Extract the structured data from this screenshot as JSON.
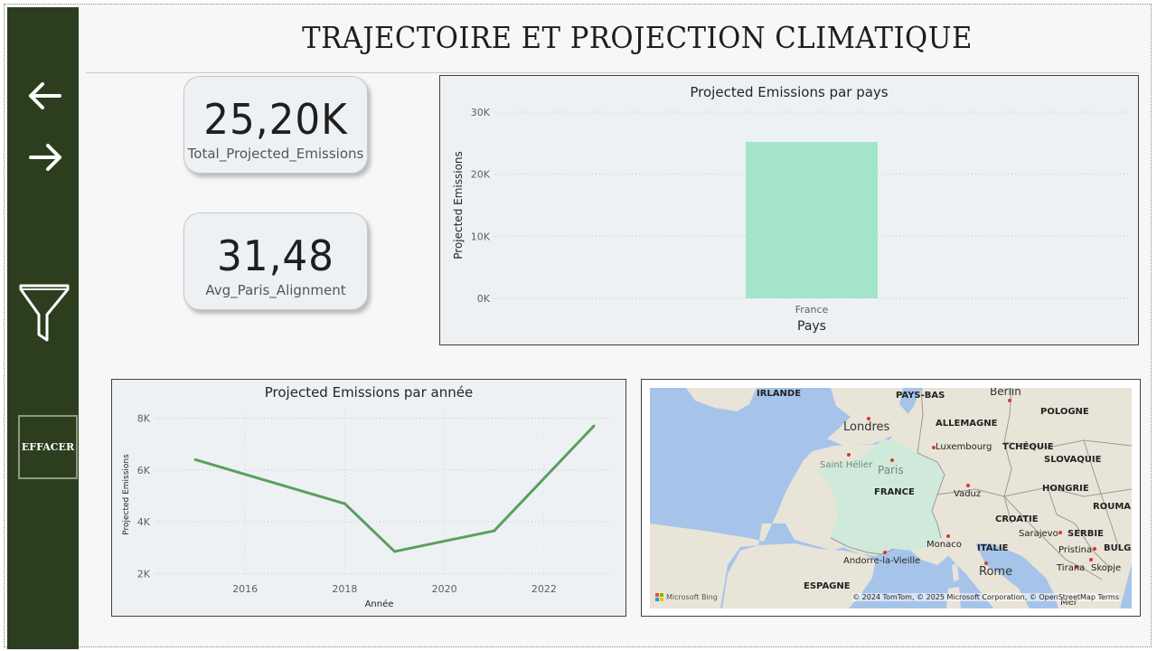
{
  "page": {
    "title": "TRAJECTOIRE ET PROJECTION CLIMATIQUE"
  },
  "sidebar": {
    "back_icon": "arrow-left-icon",
    "forward_icon": "arrow-right-icon",
    "filter_icon": "funnel-icon",
    "clear_label": "EFFACER",
    "background_color": "#2c3e1e"
  },
  "kpis": [
    {
      "value": "25,20K",
      "label": "Total_Projected_Emissions"
    },
    {
      "value": "31,48",
      "label": "Avg_Paris_Alignment"
    }
  ],
  "chart_data": [
    {
      "type": "bar",
      "title": "Projected Emissions par pays",
      "xlabel": "Pays",
      "ylabel": "Projected Emissions",
      "categories": [
        "France"
      ],
      "values": [
        25200
      ],
      "ylim": [
        0,
        30000
      ],
      "yticks": [
        "0K",
        "10K",
        "20K",
        "30K"
      ],
      "color": "#a3e4cb",
      "grid": true
    },
    {
      "type": "line",
      "title": "Projected Emissions par année",
      "xlabel": "Année",
      "ylabel": "Projected Emissions",
      "x": [
        2015,
        2018,
        2019,
        2021,
        2023
      ],
      "values": [
        6400,
        4700,
        2850,
        3650,
        7700
      ],
      "xlim": [
        2014.2,
        2023.4
      ],
      "ylim": [
        1800,
        8300
      ],
      "xticks": [
        "2016",
        "2018",
        "2020",
        "2022"
      ],
      "yticks": [
        "2K",
        "4K",
        "6K",
        "8K"
      ],
      "color": "#5aa05e",
      "grid": true
    }
  ],
  "map": {
    "labels": {
      "irlande": "IRLANDE",
      "pays_bas": "PAYS-BAS",
      "berlin": "Berlin",
      "pologne": "POLOGNE",
      "londres": "Londres",
      "allemagne": "ALLEMAGNE",
      "luxembourg": "Luxembourg",
      "tchequie": "TCHÉQUIE",
      "saint_helier": "Saint Hélier",
      "paris": "Paris",
      "slovaquie": "SLOVAQUIE",
      "france": "FRANCE",
      "vaduz": "Vaduz",
      "hongrie": "HONGRIE",
      "rouma": "ROUMA",
      "croatie": "CROATIE",
      "sarajevo": "Sarajevo",
      "serbie": "SERBIE",
      "monaco": "Monaco",
      "italie": "ITALIE",
      "pristina": "Pristina",
      "bulga": "BULGA",
      "andorre": "Andorre-la-Vieille",
      "rome": "Rome",
      "tirana": "Tirana",
      "skopje": "Skopje",
      "espagne": "ESPAGNE",
      "mer": "Mer"
    },
    "credit": "© 2024 TomTom, © 2025 Microsoft Corporation, © OpenStreetMap Terms",
    "provider": "Microsoft Bing",
    "highlight_color": "#cfeadb",
    "water_color": "#a6c4ea"
  }
}
